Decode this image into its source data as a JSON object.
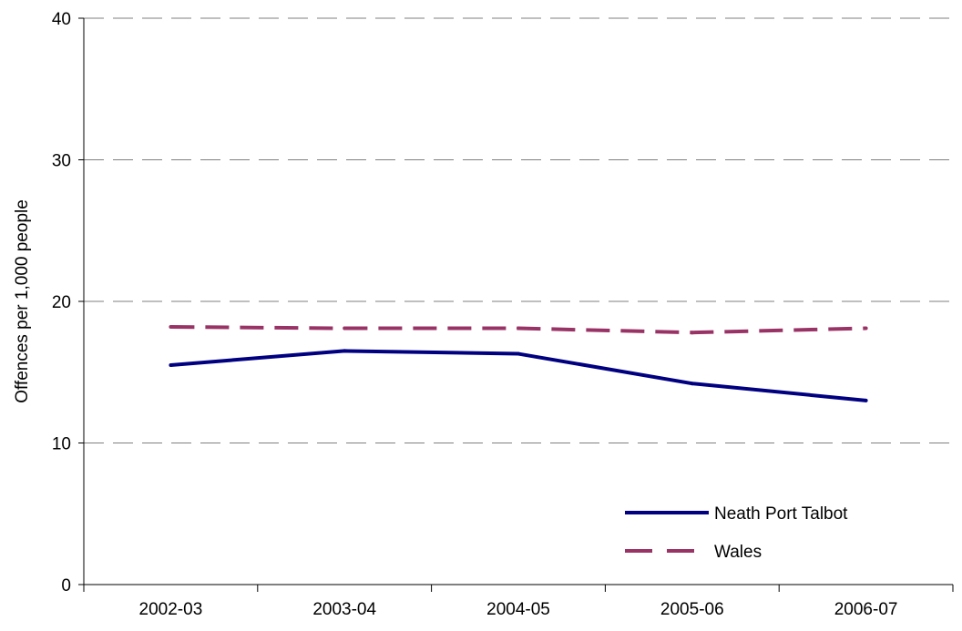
{
  "chart_data": {
    "type": "line",
    "title": "",
    "xlabel": "",
    "ylabel": "Offences per 1,000 people",
    "categories": [
      "2002-03",
      "2003-04",
      "2004-05",
      "2005-06",
      "2006-07"
    ],
    "ylim": [
      0,
      40
    ],
    "yticks": [
      "0",
      "10",
      "20",
      "30",
      "40"
    ],
    "grid": "horizontal dashed",
    "legend_position": "bottom-right",
    "series": [
      {
        "name": "Neath Port Talbot",
        "values": [
          15.5,
          16.5,
          16.3,
          14.2,
          13.0
        ],
        "color": "#000080",
        "style": "solid"
      },
      {
        "name": "Wales",
        "values": [
          18.2,
          18.1,
          18.1,
          17.8,
          18.1
        ],
        "color": "#993366",
        "style": "dashed"
      }
    ]
  }
}
